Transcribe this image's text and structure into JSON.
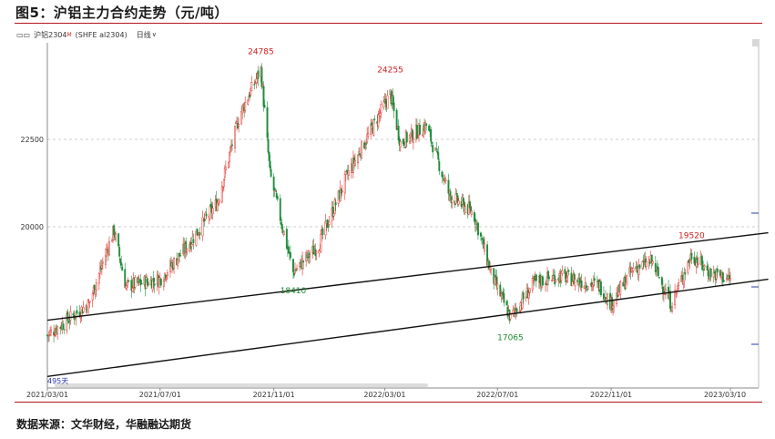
{
  "figure": {
    "title": "图5：沪铝主力合约走势（元/吨）",
    "source": "数据来源：文华财经，华融融达期货"
  },
  "toolbar": {
    "icon": "candlestick-icon",
    "symbol": "沪铝2304",
    "superscript": "M",
    "code": "(SHFE al2304)",
    "period": "日线",
    "dropdown_icon": "chevron-down-icon"
  },
  "colors": {
    "up": "#e0302a",
    "down": "#1e8c3a",
    "trend": "#111111",
    "grid": "#cfcfcf",
    "rule": "#b4141e"
  },
  "chart_data": {
    "type": "candlestick",
    "y_ticks": [
      22500,
      20000
    ],
    "ylim": [
      16000,
      25800
    ],
    "x_ticks": [
      "2021/03/01",
      "2021/07/01",
      "2021/11/01",
      "2022/03/01",
      "2022/07/01",
      "2022/11/01",
      "2023/03/10"
    ],
    "xlim": [
      "2021/03/01",
      "2023/03/10"
    ],
    "grid": "horizontal dashed",
    "bar_count_label": "495天",
    "annotations": [
      {
        "text": "24785",
        "date": "2021/10/18",
        "value": 24785,
        "kind": "high"
      },
      {
        "text": "24255",
        "date": "2022/03/07",
        "value": 24255,
        "kind": "high"
      },
      {
        "text": "18410",
        "date": "2021/11/22",
        "value": 18410,
        "kind": "low"
      },
      {
        "text": "17065",
        "date": "2022/07/15",
        "value": 17065,
        "kind": "low"
      },
      {
        "text": "19520",
        "date": "2023/01/27",
        "value": 19520,
        "kind": "high"
      }
    ],
    "trend_lines": [
      {
        "name": "upper",
        "start": {
          "date": "2021/03/01",
          "value": 17330
        },
        "end": {
          "date": "2023/04/20",
          "value": 19830
        }
      },
      {
        "name": "lower",
        "start": {
          "date": "2021/03/01",
          "value": 15720
        },
        "end": {
          "date": "2023/04/20",
          "value": 18500
        }
      }
    ],
    "anchors": [
      {
        "date": "2021/03/01",
        "value": 16900
      },
      {
        "date": "2021/04/15",
        "value": 17800
      },
      {
        "date": "2021/05/12",
        "value": 19900
      },
      {
        "date": "2021/05/25",
        "value": 18300
      },
      {
        "date": "2021/07/01",
        "value": 18500
      },
      {
        "date": "2021/08/01",
        "value": 19500
      },
      {
        "date": "2021/09/01",
        "value": 20700
      },
      {
        "date": "2021/09/25",
        "value": 23200
      },
      {
        "date": "2021/10/18",
        "value": 24500
      },
      {
        "date": "2021/10/28",
        "value": 21500
      },
      {
        "date": "2021/11/22",
        "value": 18700
      },
      {
        "date": "2021/12/20",
        "value": 19500
      },
      {
        "date": "2022/01/20",
        "value": 21500
      },
      {
        "date": "2022/02/15",
        "value": 22800
      },
      {
        "date": "2022/03/07",
        "value": 23800
      },
      {
        "date": "2022/03/18",
        "value": 22400
      },
      {
        "date": "2022/04/15",
        "value": 22900
      },
      {
        "date": "2022/05/10",
        "value": 20900
      },
      {
        "date": "2022/06/05",
        "value": 20400
      },
      {
        "date": "2022/06/25",
        "value": 18600
      },
      {
        "date": "2022/07/15",
        "value": 17400
      },
      {
        "date": "2022/08/10",
        "value": 18400
      },
      {
        "date": "2022/09/05",
        "value": 18600
      },
      {
        "date": "2022/10/20",
        "value": 18300
      },
      {
        "date": "2022/11/01",
        "value": 17800
      },
      {
        "date": "2022/11/25",
        "value": 18800
      },
      {
        "date": "2022/12/15",
        "value": 19000
      },
      {
        "date": "2023/01/05",
        "value": 17800
      },
      {
        "date": "2023/01/27",
        "value": 19200
      },
      {
        "date": "2023/02/15",
        "value": 18700
      },
      {
        "date": "2023/03/10",
        "value": 18500
      }
    ]
  }
}
